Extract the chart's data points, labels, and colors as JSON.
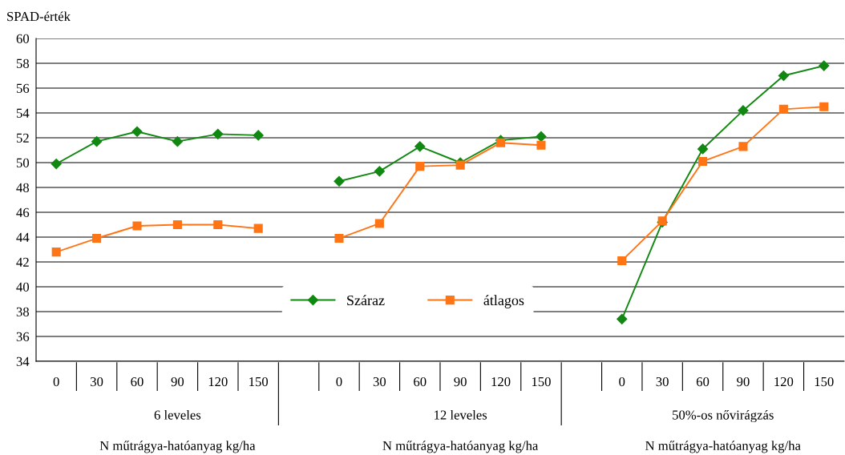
{
  "chart_data": {
    "type": "line",
    "ylabel": "SPAD-érték",
    "categories": [
      "0",
      "30",
      "60",
      "90",
      "120",
      "150",
      null,
      "0",
      "30",
      "60",
      "90",
      "120",
      "150",
      null,
      "0",
      "30",
      "60",
      "90",
      "120",
      "150"
    ],
    "series": [
      {
        "name": "Száraz",
        "color": "#118811",
        "marker": "diamond",
        "values": [
          49.9,
          51.7,
          52.5,
          51.7,
          52.3,
          52.2,
          null,
          48.5,
          49.3,
          51.3,
          50.0,
          51.8,
          52.1,
          null,
          37.4,
          45.2,
          51.1,
          54.2,
          57.0,
          57.8
        ]
      },
      {
        "name": "átlagos",
        "color": "#ff7414",
        "marker": "square",
        "values": [
          42.8,
          43.9,
          44.9,
          45.0,
          45.0,
          44.7,
          null,
          43.9,
          45.1,
          49.7,
          49.8,
          51.6,
          51.4,
          null,
          42.1,
          45.3,
          50.1,
          51.3,
          54.3,
          54.5
        ]
      }
    ],
    "ylim": [
      34,
      60
    ],
    "yticks": [
      34,
      36,
      38,
      40,
      42,
      44,
      46,
      48,
      50,
      52,
      54,
      56,
      58,
      60
    ],
    "grid": "y",
    "legend": "bottom",
    "annotations": [
      "6 leveles",
      "12 leveles",
      "50%-os nővirágzás",
      "N műtrágya-hatóanyag kg/ha",
      "N műtrágya-hatóanyag kg/ha",
      "N műtrágya-hatóanyag kg/ha"
    ]
  }
}
